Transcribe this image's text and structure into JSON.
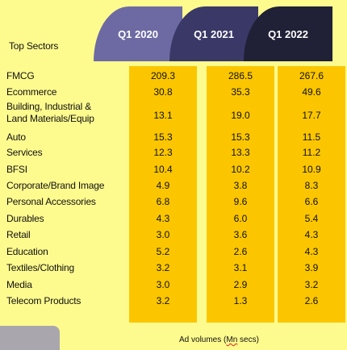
{
  "chart_data": {
    "type": "table",
    "title": "Top Sectors",
    "columns": [
      "Q1 2020",
      "Q1 2021",
      "Q1 2022"
    ],
    "column_colors": [
      "#6d6aa3",
      "#3a3867",
      "#202036"
    ],
    "column_fill": "#fbc600",
    "rows": [
      {
        "label": "FMCG",
        "values": [
          "209.3",
          "286.5",
          "267.6"
        ]
      },
      {
        "label": "Ecommerce",
        "values": [
          "30.8",
          "35.3",
          "49.6"
        ]
      },
      {
        "label": "Building, Industrial &\nLand Materials/Equip",
        "values": [
          "13.1",
          "19.0",
          "17.7"
        ]
      },
      {
        "label": "Auto",
        "values": [
          "15.3",
          "15.3",
          "11.5"
        ]
      },
      {
        "label": "Services",
        "values": [
          "12.3",
          "13.3",
          "11.2"
        ]
      },
      {
        "label": "BFSI",
        "values": [
          "10.4",
          "10.2",
          "10.9"
        ]
      },
      {
        "label": "Corporate/Brand Image",
        "values": [
          "4.9",
          "3.8",
          "8.3"
        ]
      },
      {
        "label": "Personal Accessories",
        "values": [
          "6.8",
          "9.6",
          "6.6"
        ]
      },
      {
        "label": "Durables",
        "values": [
          "4.3",
          "6.0",
          "5.4"
        ]
      },
      {
        "label": "Retail",
        "values": [
          "3.0",
          "3.6",
          "4.3"
        ]
      },
      {
        "label": "Education",
        "values": [
          "5.2",
          "2.6",
          "4.3"
        ]
      },
      {
        "label": "Textiles/Clothing",
        "values": [
          "3.2",
          "3.1",
          "3.9"
        ]
      },
      {
        "label": "Media",
        "values": [
          "3.0",
          "2.9",
          "3.2"
        ]
      },
      {
        "label": "Telecom Products",
        "values": [
          "3.2",
          "1.3",
          "2.6"
        ]
      }
    ],
    "footnote_prefix": "Ad volumes (",
    "footnote_unit": "Mn",
    "footnote_suffix": " secs)"
  }
}
